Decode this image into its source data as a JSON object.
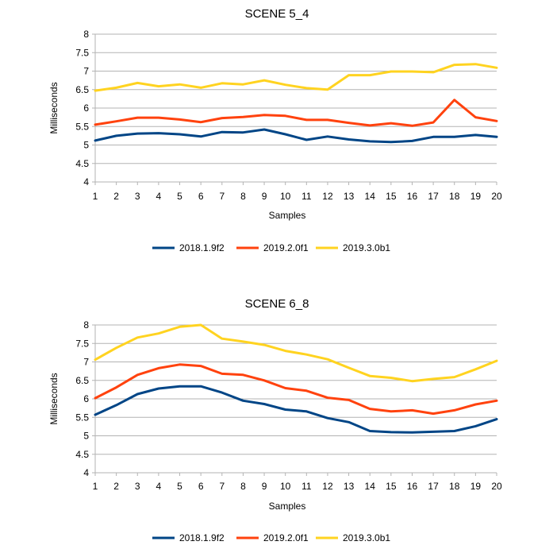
{
  "chart_data": [
    {
      "type": "line",
      "title": "SCENE 5_4",
      "xlabel": "Samples",
      "ylabel": "Milliseconds",
      "ylim": [
        4,
        8
      ],
      "yticks": [
        "4",
        "4.5",
        "5",
        "5.5",
        "6",
        "6.5",
        "7",
        "7.5",
        "8"
      ],
      "categories": [
        "1",
        "2",
        "3",
        "4",
        "5",
        "6",
        "7",
        "8",
        "9",
        "10",
        "11",
        "12",
        "13",
        "14",
        "15",
        "16",
        "17",
        "18",
        "19",
        "20"
      ],
      "grid": true,
      "legend": "bottom",
      "series": [
        {
          "name": "2018.1.9f2",
          "color": "#004586",
          "values": [
            5.12,
            5.25,
            5.31,
            5.32,
            5.29,
            5.23,
            5.35,
            5.34,
            5.42,
            5.29,
            5.14,
            5.23,
            5.15,
            5.1,
            5.08,
            5.11,
            5.22,
            5.22,
            5.27,
            5.22
          ]
        },
        {
          "name": "2019.2.0f1",
          "color": "#ff420e",
          "values": [
            5.55,
            5.64,
            5.74,
            5.74,
            5.69,
            5.62,
            5.73,
            5.76,
            5.81,
            5.79,
            5.68,
            5.68,
            5.6,
            5.53,
            5.59,
            5.52,
            5.61,
            6.22,
            5.75,
            5.65
          ]
        },
        {
          "name": "2019.3.0b1",
          "color": "#ffd320",
          "values": [
            6.47,
            6.55,
            6.68,
            6.59,
            6.64,
            6.55,
            6.67,
            6.64,
            6.75,
            6.63,
            6.54,
            6.5,
            6.89,
            6.89,
            6.99,
            6.99,
            6.97,
            7.17,
            7.19,
            7.09
          ]
        }
      ]
    },
    {
      "type": "line",
      "title": "SCENE 6_8",
      "xlabel": "Samples",
      "ylabel": "Milliseconds",
      "ylim": [
        4,
        8
      ],
      "yticks": [
        "4",
        "4.5",
        "5",
        "5.5",
        "6",
        "6.5",
        "7",
        "7.5",
        "8"
      ],
      "categories": [
        "1",
        "2",
        "3",
        "4",
        "5",
        "6",
        "7",
        "8",
        "9",
        "10",
        "11",
        "12",
        "13",
        "14",
        "15",
        "16",
        "17",
        "18",
        "19",
        "20"
      ],
      "grid": true,
      "legend": "bottom",
      "series": [
        {
          "name": "2018.1.9f2",
          "color": "#004586",
          "values": [
            5.57,
            5.83,
            6.13,
            6.28,
            6.34,
            6.34,
            6.17,
            5.95,
            5.86,
            5.71,
            5.66,
            5.48,
            5.37,
            5.13,
            5.1,
            5.09,
            5.11,
            5.13,
            5.26,
            5.45
          ]
        },
        {
          "name": "2019.2.0f1",
          "color": "#ff420e",
          "values": [
            6.02,
            6.31,
            6.65,
            6.83,
            6.93,
            6.89,
            6.68,
            6.65,
            6.5,
            6.29,
            6.22,
            6.03,
            5.97,
            5.73,
            5.66,
            5.69,
            5.6,
            5.69,
            5.85,
            5.95
          ]
        },
        {
          "name": "2019.3.0b1",
          "color": "#ffd320",
          "values": [
            7.06,
            7.38,
            7.66,
            7.77,
            7.95,
            8.0,
            7.63,
            7.55,
            7.46,
            7.3,
            7.2,
            7.07,
            6.84,
            6.62,
            6.57,
            6.48,
            6.54,
            6.59,
            6.8,
            7.03
          ]
        }
      ]
    }
  ]
}
